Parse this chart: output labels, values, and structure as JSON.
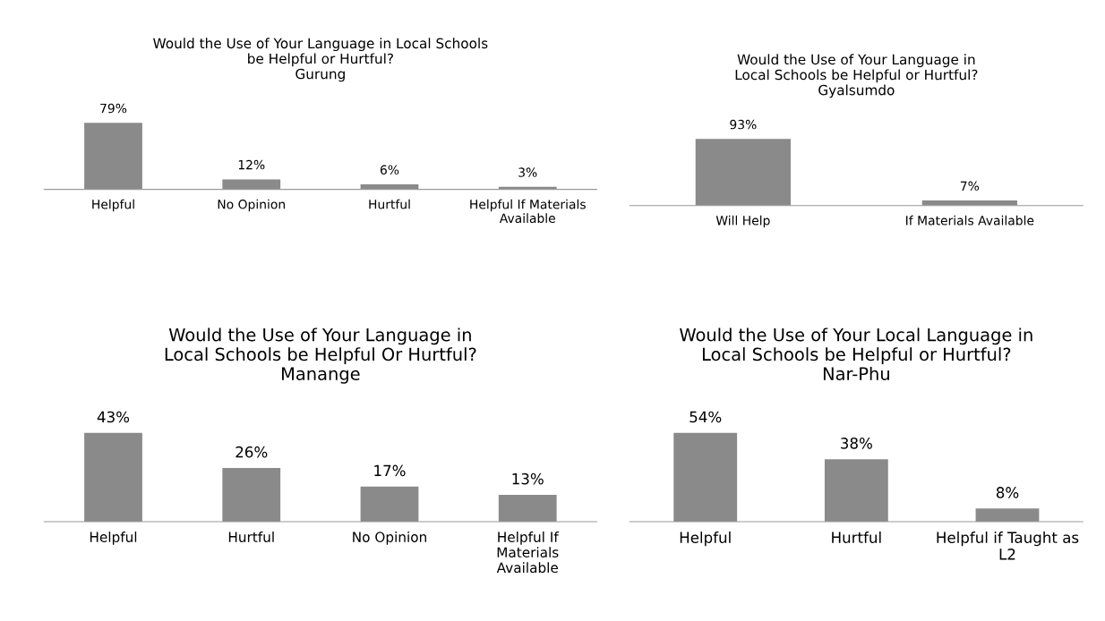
{
  "chart_data": [
    {
      "type": "bar",
      "title": "Would the Use of Your Language in Local Schools\nbe Helpful or Hurtful?\nGurung",
      "categories": [
        "Helpful",
        "No Opinion",
        "Hurtful",
        "Helpful If Materials\nAvailable"
      ],
      "values": [
        79,
        12,
        6,
        3
      ],
      "value_labels": [
        "79%",
        "12%",
        "6%",
        "3%"
      ],
      "color": "#8a8a8a"
    },
    {
      "type": "bar",
      "title": "Would the Use of Your Language in\nLocal Schools be Helpful or Hurtful?\nGyalsumdo",
      "categories": [
        "Will Help",
        "If Materials Available"
      ],
      "values": [
        93,
        7
      ],
      "value_labels": [
        "93%",
        "7%"
      ],
      "color": "#8a8a8a"
    },
    {
      "type": "bar",
      "title": "Would the Use of Your Language in\nLocal Schools be Helpful Or Hurtful?\nManange",
      "categories": [
        "Helpful",
        "Hurtful",
        "No Opinion",
        "Helpful If\nMaterials\nAvailable"
      ],
      "values": [
        43,
        26,
        17,
        13
      ],
      "value_labels": [
        "43%",
        "26%",
        "17%",
        "13%"
      ],
      "color": "#8a8a8a"
    },
    {
      "type": "bar",
      "title": "Would the Use of Your Local Language in\nLocal Schools be Helpful or Hurtful?\nNar-Phu",
      "categories": [
        "Helpful",
        "Hurtful",
        "Helpful if Taught as\nL2"
      ],
      "values": [
        54,
        38,
        8
      ],
      "value_labels": [
        "54%",
        "38%",
        "8%"
      ],
      "color": "#8a8a8a"
    }
  ]
}
